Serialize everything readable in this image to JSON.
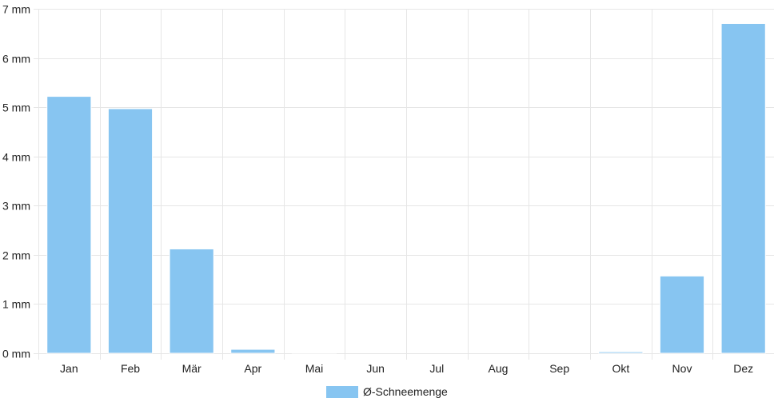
{
  "chart_data": {
    "type": "bar",
    "categories": [
      "Jan",
      "Feb",
      "Mär",
      "Apr",
      "Mai",
      "Jun",
      "Jul",
      "Aug",
      "Sep",
      "Okt",
      "Nov",
      "Dez"
    ],
    "series": [
      {
        "name": "Ø-Schneemenge",
        "values": [
          5.22,
          4.97,
          2.12,
          0.08,
          0.01,
          0,
          0,
          0,
          0,
          0.03,
          1.57,
          6.7
        ],
        "color": "#87c5f1"
      }
    ],
    "y_ticks": [
      "0 mm",
      "1 mm",
      "2 mm",
      "3 mm",
      "4 mm",
      "5 mm",
      "6 mm",
      "7 mm"
    ],
    "ylim": [
      0,
      7
    ],
    "y_unit": "mm",
    "grid": true,
    "legend_position": "bottom-center"
  },
  "colors": {
    "bar_fill": "#87c5f1",
    "bar_border": "#ffffff",
    "grid": "#e6e6e6",
    "axis_text": "#222222"
  }
}
